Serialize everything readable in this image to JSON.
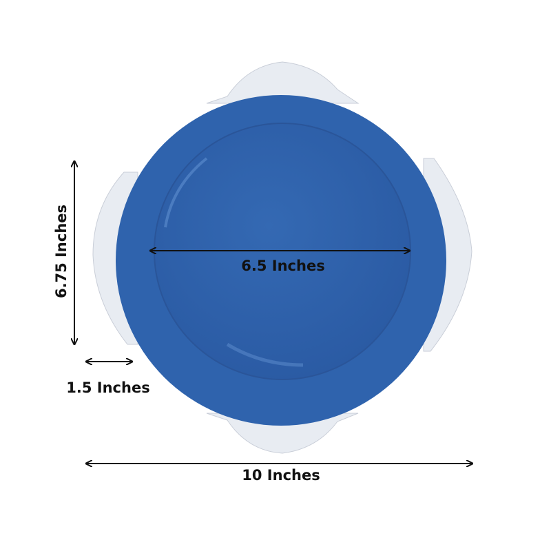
{
  "product": {
    "plate_color": "#2f63ad",
    "rim_trim_color": "#e8ecf2"
  },
  "dimensions": {
    "height_label": "6.75 Inches",
    "inner_diameter_label": "6.5 Inches",
    "rim_width_label": "1.5 Inches",
    "overall_diameter_label": "10 Inches"
  }
}
